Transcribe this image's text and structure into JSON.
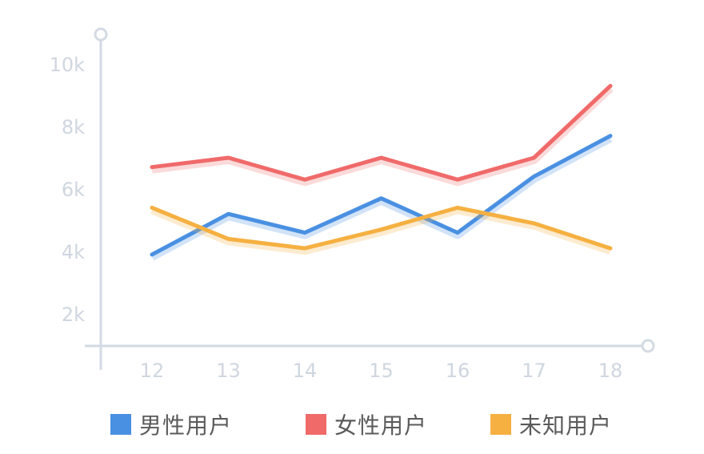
{
  "chart_data": {
    "type": "line",
    "x": [
      12,
      13,
      14,
      15,
      16,
      17,
      18
    ],
    "y_ticks": [
      "2k",
      "4k",
      "6k",
      "8k",
      "10k"
    ],
    "y_tick_values": [
      2000,
      4000,
      6000,
      8000,
      10000
    ],
    "ylim": [
      0,
      11000
    ],
    "grid": false,
    "legend_position": "bottom",
    "series": [
      {
        "name": "男性用户",
        "color": "#4a90e2",
        "values": [
          3900,
          5200,
          4600,
          5700,
          4600,
          6400,
          7700
        ]
      },
      {
        "name": "女性用户",
        "color": "#f06a6a",
        "values": [
          6700,
          7000,
          6300,
          7000,
          6300,
          7000,
          9300
        ]
      },
      {
        "name": "未知用户",
        "color": "#f5b041",
        "values": [
          5400,
          4400,
          4100,
          4700,
          5400,
          4900,
          4100
        ]
      }
    ]
  }
}
